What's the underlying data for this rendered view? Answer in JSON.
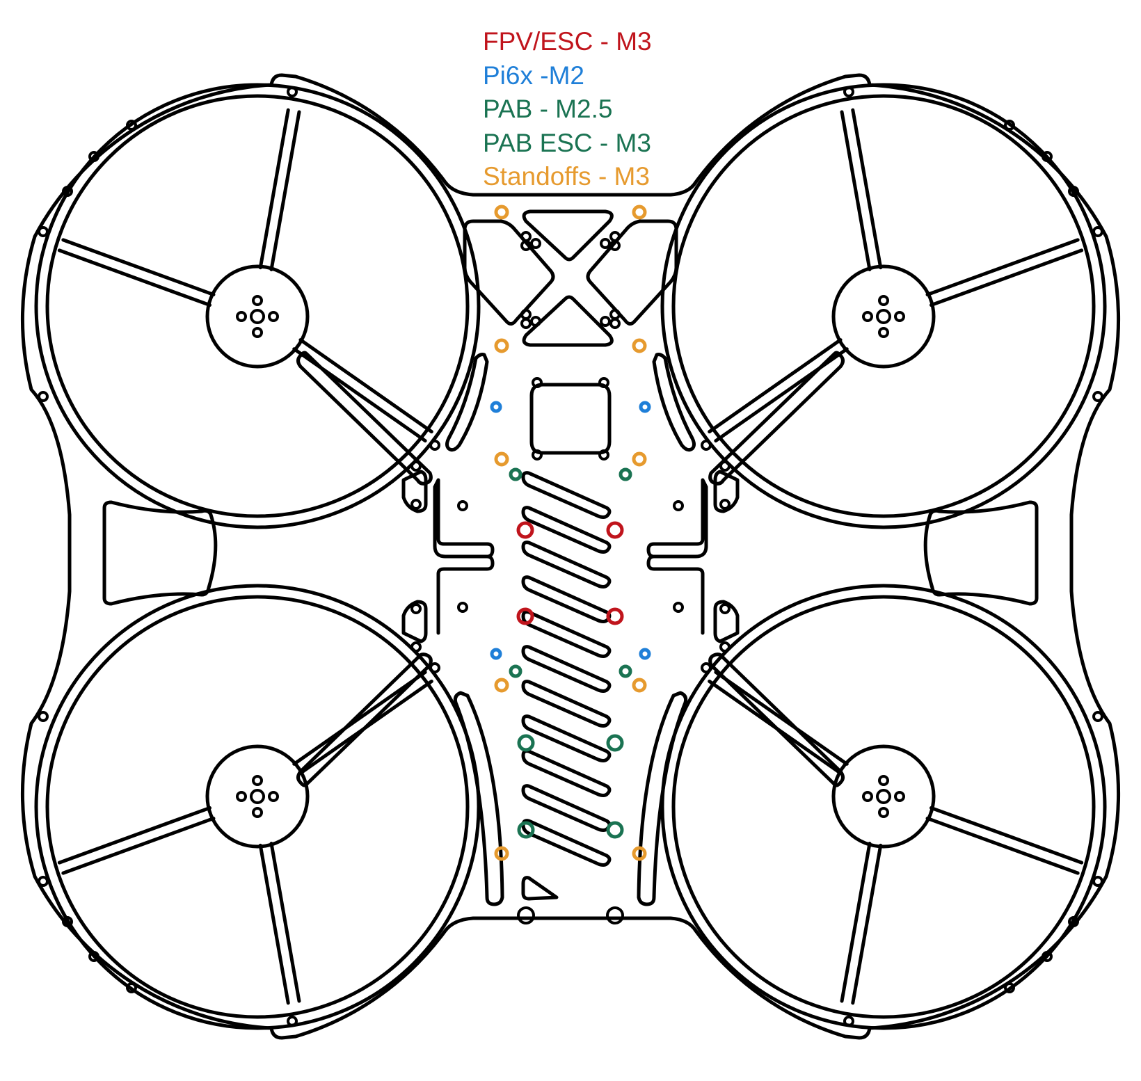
{
  "legend": [
    {
      "label": "FPV/ESC - M3",
      "color": "#c0141c"
    },
    {
      "label": "Pi6x -M2",
      "color": "#1f7fd8"
    },
    {
      "label": "PAB - M2.5",
      "color": "#1a7352"
    },
    {
      "label": "PAB ESC - M3",
      "color": "#1a7352"
    },
    {
      "label": "Standoffs - M3",
      "color": "#e69a2e"
    }
  ]
}
